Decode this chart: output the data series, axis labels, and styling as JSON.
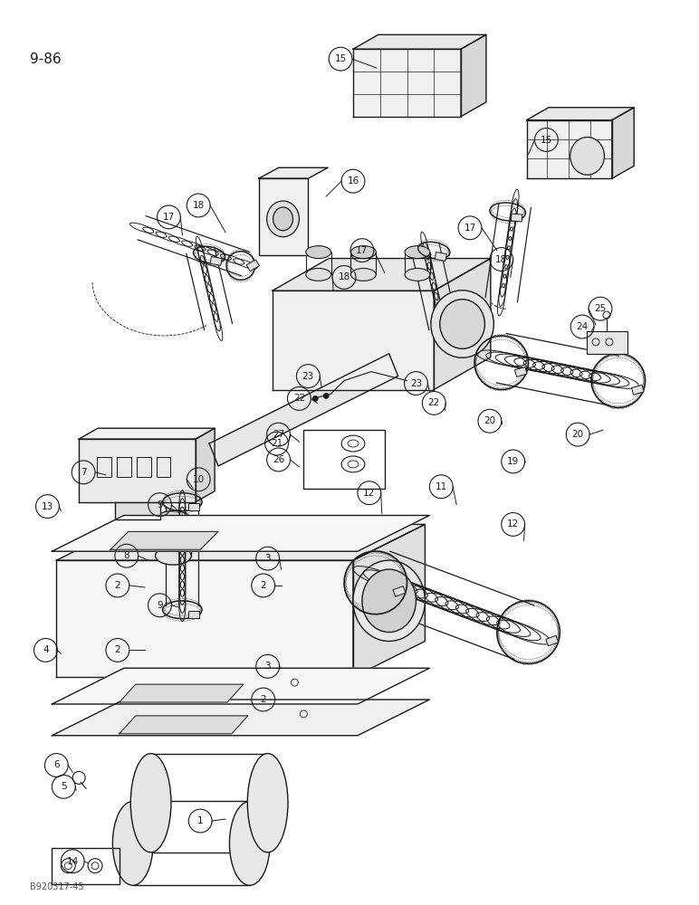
{
  "page_label": "9-86",
  "bottom_label": "B920317-45",
  "background_color": "#ffffff",
  "line_color": "#1a1a1a",
  "fig_width": 7.72,
  "fig_height": 10.0,
  "dpi": 100
}
